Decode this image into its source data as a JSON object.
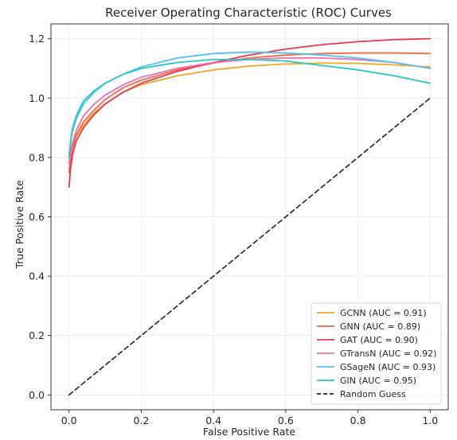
{
  "chart_data": {
    "type": "line",
    "title": "Receiver Operating Characteristic (ROC) Curves",
    "xlabel": "False Positive Rate",
    "ylabel": "True Positive Rate",
    "xlim": [
      -0.05,
      1.05
    ],
    "ylim": [
      -0.05,
      1.25
    ],
    "xticks": [
      0.0,
      0.2,
      0.4,
      0.6,
      0.8,
      1.0
    ],
    "xtick_labels": [
      "0.0",
      "0.2",
      "0.4",
      "0.6",
      "0.8",
      "1.0"
    ],
    "yticks": [
      0.0,
      0.2,
      0.4,
      0.6,
      0.8,
      1.0,
      1.2
    ],
    "ytick_labels": [
      "0.0",
      "0.2",
      "0.4",
      "0.6",
      "0.8",
      "1.0",
      "1.2"
    ],
    "grid": true,
    "legend_position": "lower-right",
    "series": [
      {
        "name": "GCNN (AUC = 0.91)",
        "color": "#f5a623",
        "dashed": false,
        "x": [
          0.0,
          0.005,
          0.01,
          0.02,
          0.04,
          0.07,
          0.1,
          0.15,
          0.2,
          0.3,
          0.4,
          0.5,
          0.6,
          0.7,
          0.8,
          0.9,
          1.0
        ],
        "y": [
          0.75,
          0.8,
          0.83,
          0.87,
          0.91,
          0.95,
          0.98,
          1.02,
          1.045,
          1.075,
          1.095,
          1.108,
          1.115,
          1.118,
          1.117,
          1.112,
          1.105
        ]
      },
      {
        "name": "GNN (AUC = 0.89)",
        "color": "#f06a3f",
        "dashed": false,
        "x": [
          0.0,
          0.005,
          0.01,
          0.02,
          0.04,
          0.07,
          0.1,
          0.15,
          0.2,
          0.3,
          0.4,
          0.5,
          0.6,
          0.7,
          0.8,
          0.9,
          1.0
        ],
        "y": [
          0.75,
          0.8,
          0.835,
          0.875,
          0.92,
          0.96,
          0.995,
          1.035,
          1.06,
          1.095,
          1.118,
          1.135,
          1.145,
          1.15,
          1.152,
          1.152,
          1.15
        ]
      },
      {
        "name": "GAT (AUC = 0.90)",
        "color": "#e8384f",
        "dashed": false,
        "x": [
          0.0,
          0.005,
          0.01,
          0.02,
          0.04,
          0.07,
          0.1,
          0.15,
          0.2,
          0.3,
          0.4,
          0.5,
          0.6,
          0.7,
          0.8,
          0.9,
          1.0
        ],
        "y": [
          0.7,
          0.77,
          0.81,
          0.855,
          0.9,
          0.945,
          0.98,
          1.02,
          1.05,
          1.09,
          1.12,
          1.145,
          1.165,
          1.18,
          1.19,
          1.197,
          1.2
        ]
      },
      {
        "name": "GTransN (AUC = 0.92)",
        "color": "#f06bb5",
        "dashed": false,
        "x": [
          0.0,
          0.005,
          0.01,
          0.02,
          0.04,
          0.07,
          0.1,
          0.15,
          0.2,
          0.3,
          0.4,
          0.5,
          0.6,
          0.7,
          0.8,
          0.9,
          1.0
        ],
        "y": [
          0.78,
          0.82,
          0.85,
          0.89,
          0.94,
          0.98,
          1.01,
          1.045,
          1.07,
          1.1,
          1.12,
          1.13,
          1.135,
          1.135,
          1.13,
          1.12,
          1.1
        ]
      },
      {
        "name": "GSageN (AUC = 0.93)",
        "color": "#4fc3f7",
        "dashed": false,
        "x": [
          0.0,
          0.005,
          0.01,
          0.02,
          0.04,
          0.07,
          0.1,
          0.15,
          0.2,
          0.3,
          0.4,
          0.5,
          0.6,
          0.7,
          0.8,
          0.9,
          1.0
        ],
        "y": [
          0.8,
          0.855,
          0.89,
          0.93,
          0.98,
          1.02,
          1.05,
          1.08,
          1.105,
          1.135,
          1.15,
          1.155,
          1.152,
          1.145,
          1.135,
          1.12,
          1.1
        ]
      },
      {
        "name": "GIN (AUC = 0.95)",
        "color": "#26c6c6",
        "dashed": false,
        "x": [
          0.0,
          0.005,
          0.01,
          0.02,
          0.04,
          0.07,
          0.1,
          0.15,
          0.2,
          0.3,
          0.4,
          0.5,
          0.6,
          0.7,
          0.8,
          0.9,
          1.0
        ],
        "y": [
          0.8,
          0.86,
          0.9,
          0.94,
          0.99,
          1.025,
          1.05,
          1.08,
          1.1,
          1.12,
          1.13,
          1.13,
          1.125,
          1.11,
          1.095,
          1.075,
          1.05
        ]
      },
      {
        "name": "Random Guess",
        "color": "#222222",
        "dashed": true,
        "x": [
          0.0,
          1.0
        ],
        "y": [
          0.0,
          1.0
        ]
      }
    ]
  }
}
